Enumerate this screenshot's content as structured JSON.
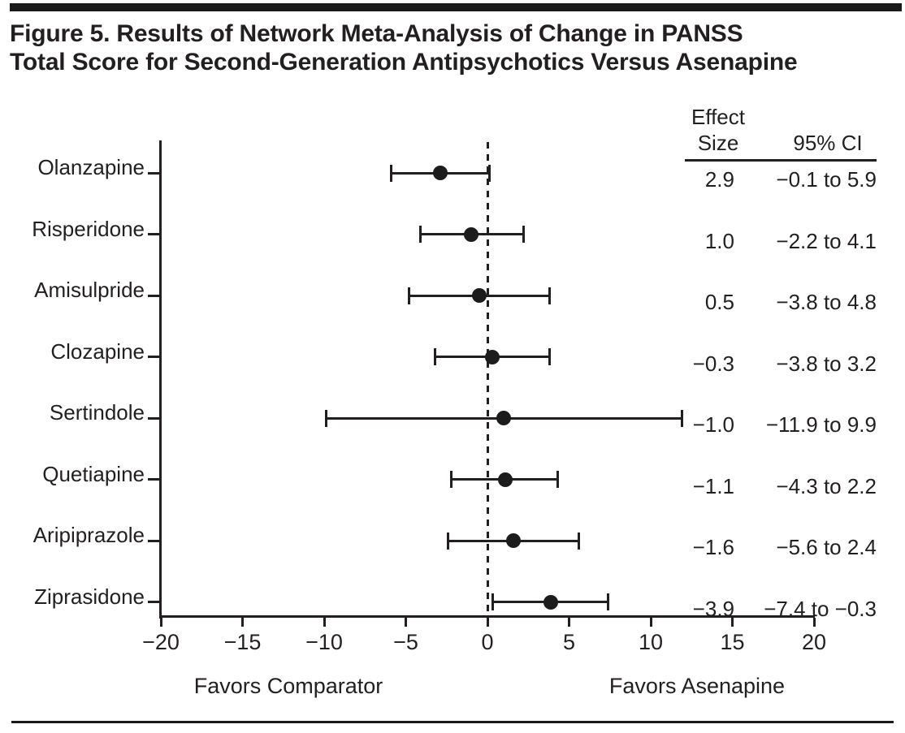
{
  "title": {
    "line1": "Figure 5. Results of Network Meta-Analysis of Change in PANSS",
    "line2": "Total Score for Second-Generation Antipsychotics Versus Asenapine"
  },
  "table": {
    "header": {
      "effect": "Effect",
      "size": "Size",
      "ci": "95% CI"
    }
  },
  "axis": {
    "ticks": [
      -20,
      -15,
      -10,
      -5,
      0,
      5,
      10,
      15,
      20
    ],
    "left_label": "Favors Comparator",
    "right_label": "Favors Asenapine"
  },
  "colors": {
    "ink": "#231f20",
    "bar": "#1a1a1a",
    "background": "#ffffff"
  },
  "chart_data": {
    "type": "forest",
    "title": "Network meta-analysis of change in PANSS total score, second-generation antipsychotics versus asenapine",
    "xlabel_left": "Favors Comparator",
    "xlabel_right": "Favors Asenapine",
    "xlim": [
      -20,
      20
    ],
    "x_tick_step": 5,
    "zero_reference_line": 0,
    "rows": [
      {
        "drug": "Olanzapine",
        "effect_size": 2.9,
        "ci_low": -0.1,
        "ci_high": 5.9,
        "es_label": "2.9",
        "ci_label": "−0.1 to 5.9",
        "plot_center": -2.9,
        "plot_lo": -5.9,
        "plot_hi": 0.1
      },
      {
        "drug": "Risperidone",
        "effect_size": 1.0,
        "ci_low": -2.2,
        "ci_high": 4.1,
        "es_label": "1.0",
        "ci_label": "−2.2 to 4.1",
        "plot_center": -1.0,
        "plot_lo": -4.1,
        "plot_hi": 2.2
      },
      {
        "drug": "Amisulpride",
        "effect_size": 0.5,
        "ci_low": -3.8,
        "ci_high": 4.8,
        "es_label": "0.5",
        "ci_label": "−3.8 to 4.8",
        "plot_center": -0.5,
        "plot_lo": -4.8,
        "plot_hi": 3.8
      },
      {
        "drug": "Clozapine",
        "effect_size": -0.3,
        "ci_low": -3.8,
        "ci_high": 3.2,
        "es_label": "−0.3",
        "ci_label": "−3.8 to 3.2",
        "plot_center": 0.3,
        "plot_lo": -3.2,
        "plot_hi": 3.8
      },
      {
        "drug": "Sertindole",
        "effect_size": -1.0,
        "ci_low": -11.9,
        "ci_high": 9.9,
        "es_label": "−1.0",
        "ci_label": "−11.9 to 9.9",
        "plot_center": 1.0,
        "plot_lo": -9.9,
        "plot_hi": 11.9
      },
      {
        "drug": "Quetiapine",
        "effect_size": -1.1,
        "ci_low": -4.3,
        "ci_high": 2.2,
        "es_label": "−1.1",
        "ci_label": "−4.3 to 2.2",
        "plot_center": 1.1,
        "plot_lo": -2.2,
        "plot_hi": 4.3
      },
      {
        "drug": "Aripiprazole",
        "effect_size": -1.6,
        "ci_low": -5.6,
        "ci_high": 2.4,
        "es_label": "−1.6",
        "ci_label": "−5.6 to 2.4",
        "plot_center": 1.6,
        "plot_lo": -2.4,
        "plot_hi": 5.6
      },
      {
        "drug": "Ziprasidone",
        "effect_size": -3.9,
        "ci_low": -7.4,
        "ci_high": -0.3,
        "es_label": "−3.9",
        "ci_label": "−7.4 to −0.3",
        "plot_center": 3.9,
        "plot_lo": 0.3,
        "plot_hi": 7.4
      }
    ]
  }
}
